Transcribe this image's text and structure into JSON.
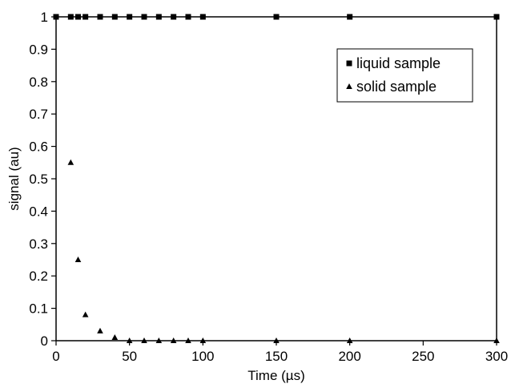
{
  "chart_data": {
    "type": "scatter",
    "title": "",
    "xlabel": "Time (µs)",
    "ylabel": "signal (au)",
    "xlim": [
      0,
      300
    ],
    "ylim": [
      0,
      1
    ],
    "xticks": [
      0,
      50,
      100,
      150,
      200,
      250,
      300
    ],
    "yticks": [
      0,
      0.1,
      0.2,
      0.3,
      0.4,
      0.5,
      0.6,
      0.7,
      0.8,
      0.9,
      1
    ],
    "xtick_labels": [
      "0",
      "50",
      "100",
      "150",
      "200",
      "250",
      "300"
    ],
    "ytick_labels": [
      "0",
      "0.1",
      "0.2",
      "0.3",
      "0.4",
      "0.5",
      "0.6",
      "0.7",
      "0.8",
      "0.9",
      "1"
    ],
    "grid": false,
    "legend_position": "top-right",
    "series": [
      {
        "name": "liquid sample",
        "marker": "square",
        "color": "#000000",
        "x": [
          0,
          10,
          15,
          20,
          30,
          40,
          50,
          60,
          70,
          80,
          90,
          100,
          150,
          200,
          300
        ],
        "y": [
          1,
          1,
          1,
          1,
          1,
          1,
          1,
          1,
          1,
          1,
          1,
          1,
          1,
          1,
          1
        ]
      },
      {
        "name": "solid sample",
        "marker": "triangle",
        "color": "#000000",
        "x": [
          10,
          15,
          20,
          30,
          40,
          50,
          60,
          70,
          80,
          90,
          100,
          150,
          200,
          300
        ],
        "y": [
          0.55,
          0.25,
          0.08,
          0.03,
          0.01,
          0,
          0,
          0,
          0,
          0,
          0,
          0,
          0,
          0
        ]
      }
    ]
  }
}
